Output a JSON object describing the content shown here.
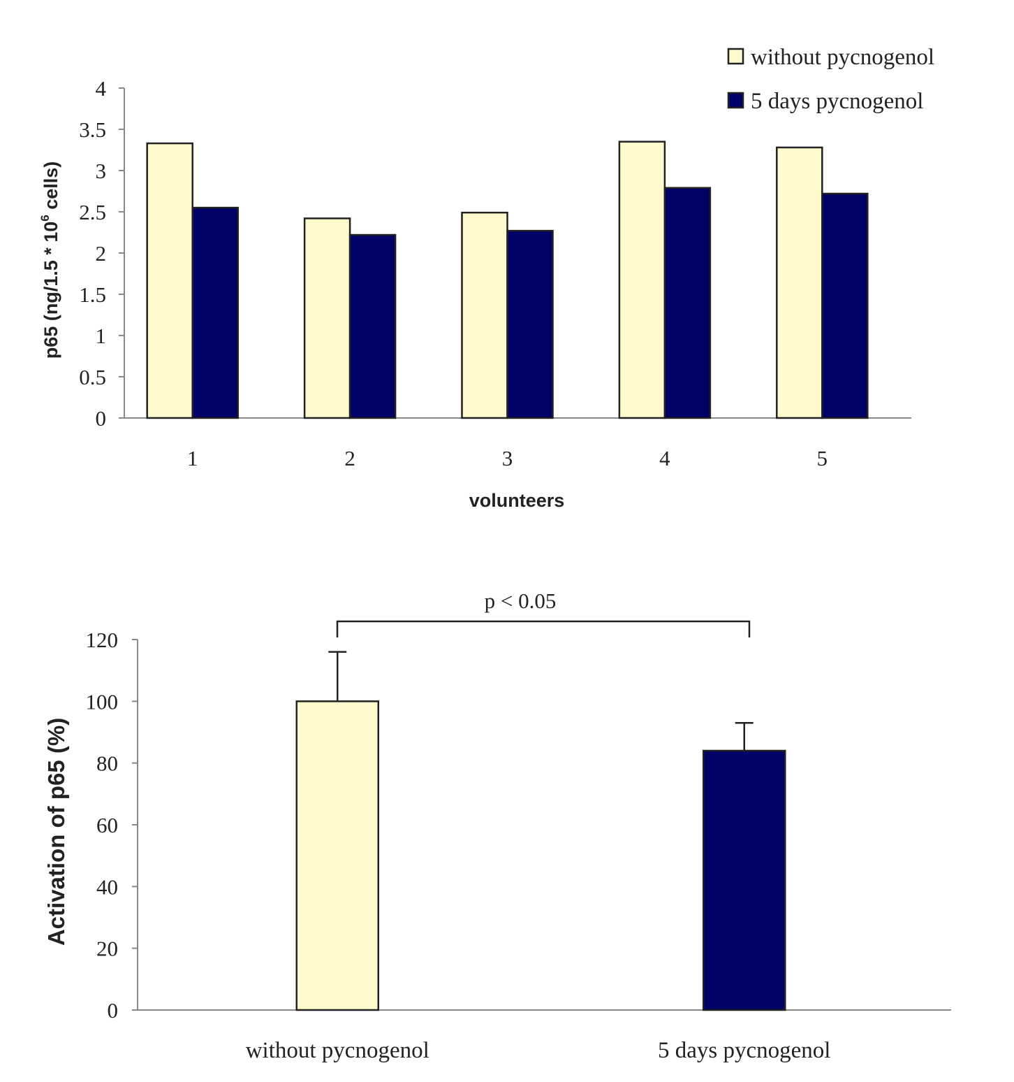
{
  "chart_data": [
    {
      "type": "bar",
      "title": "",
      "xlabel": "volunteers",
      "ylabel": "p65 (ng/1.5 * 10",
      "ylabel_sup": "6",
      "ylabel_suffix": " cells)",
      "categories": [
        "1",
        "2",
        "3",
        "4",
        "5"
      ],
      "ylim": [
        0,
        4
      ],
      "yticks": [
        "0",
        "0.5",
        "1",
        "1.5",
        "2",
        "2.5",
        "3",
        "3.5",
        "4"
      ],
      "series": [
        {
          "name": "without pycnogenol",
          "color": "#FFFACD",
          "values": [
            3.33,
            2.42,
            2.49,
            3.35,
            3.28
          ]
        },
        {
          "name": "5 days pycnogenol",
          "color": "#000066",
          "values": [
            2.55,
            2.22,
            2.27,
            2.79,
            2.72
          ]
        }
      ],
      "legend": "top-right",
      "grid": false
    },
    {
      "type": "bar",
      "title": "",
      "xlabel": "",
      "ylabel": "Activation of  p65 (%)",
      "categories": [
        "without pycnogenol",
        "5 days pycnogenol"
      ],
      "ylim": [
        0,
        120
      ],
      "yticks": [
        "0",
        "20",
        "40",
        "60",
        "80",
        "100",
        "120"
      ],
      "values": [
        100,
        84
      ],
      "errors": [
        16,
        9
      ],
      "colors": [
        "#FFFACD",
        "#000066"
      ],
      "annotation": "p  <  0.05",
      "grid": false
    }
  ]
}
